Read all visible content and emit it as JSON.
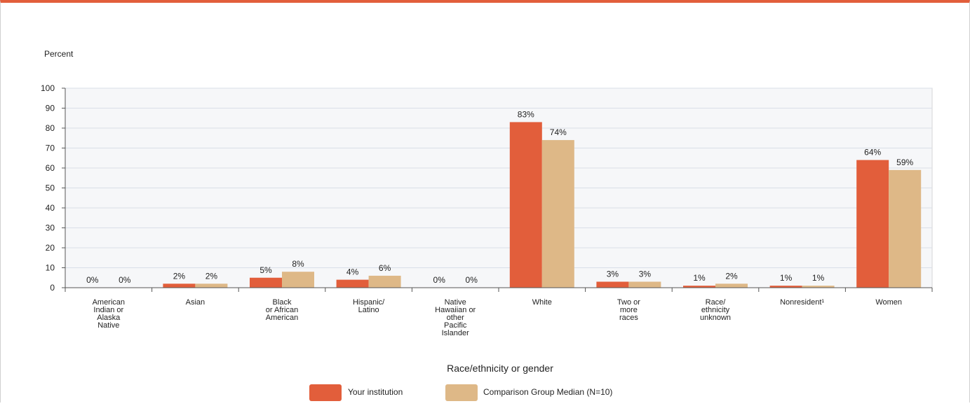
{
  "chart_data": {
    "type": "bar",
    "ylabel": "Percent",
    "xlabel": "Race/ethnicity or gender",
    "ylim": [
      0,
      100
    ],
    "yticks": [
      0,
      10,
      20,
      30,
      40,
      50,
      60,
      70,
      80,
      90,
      100
    ],
    "grid": true,
    "legend_position": "bottom",
    "categories": [
      [
        "American",
        "Indian or",
        "Alaska",
        "Native"
      ],
      [
        "Asian"
      ],
      [
        "Black",
        "or African",
        "American"
      ],
      [
        "Hispanic/",
        "Latino"
      ],
      [
        "Native",
        "Hawaiian or",
        "other",
        "Pacific",
        "Islander"
      ],
      [
        "White"
      ],
      [
        "Two or",
        "more",
        "races"
      ],
      [
        "Race/",
        "ethnicity",
        "unknown"
      ],
      [
        "Nonresident¹"
      ],
      [
        "Women"
      ]
    ],
    "series": [
      {
        "name": "Your institution",
        "color": "#e25e3b",
        "values": [
          0,
          2,
          5,
          4,
          0,
          83,
          3,
          1,
          1,
          64
        ],
        "labels": [
          "0%",
          "2%",
          "5%",
          "4%",
          "0%",
          "83%",
          "3%",
          "1%",
          "1%",
          "64%"
        ]
      },
      {
        "name": "Comparison Group Median (N=10)",
        "color": "#deb887",
        "values": [
          0,
          2,
          8,
          6,
          0,
          74,
          3,
          2,
          1,
          59
        ],
        "labels": [
          "0%",
          "2%",
          "8%",
          "6%",
          "0%",
          "74%",
          "3%",
          "2%",
          "1%",
          "59%"
        ]
      }
    ]
  }
}
